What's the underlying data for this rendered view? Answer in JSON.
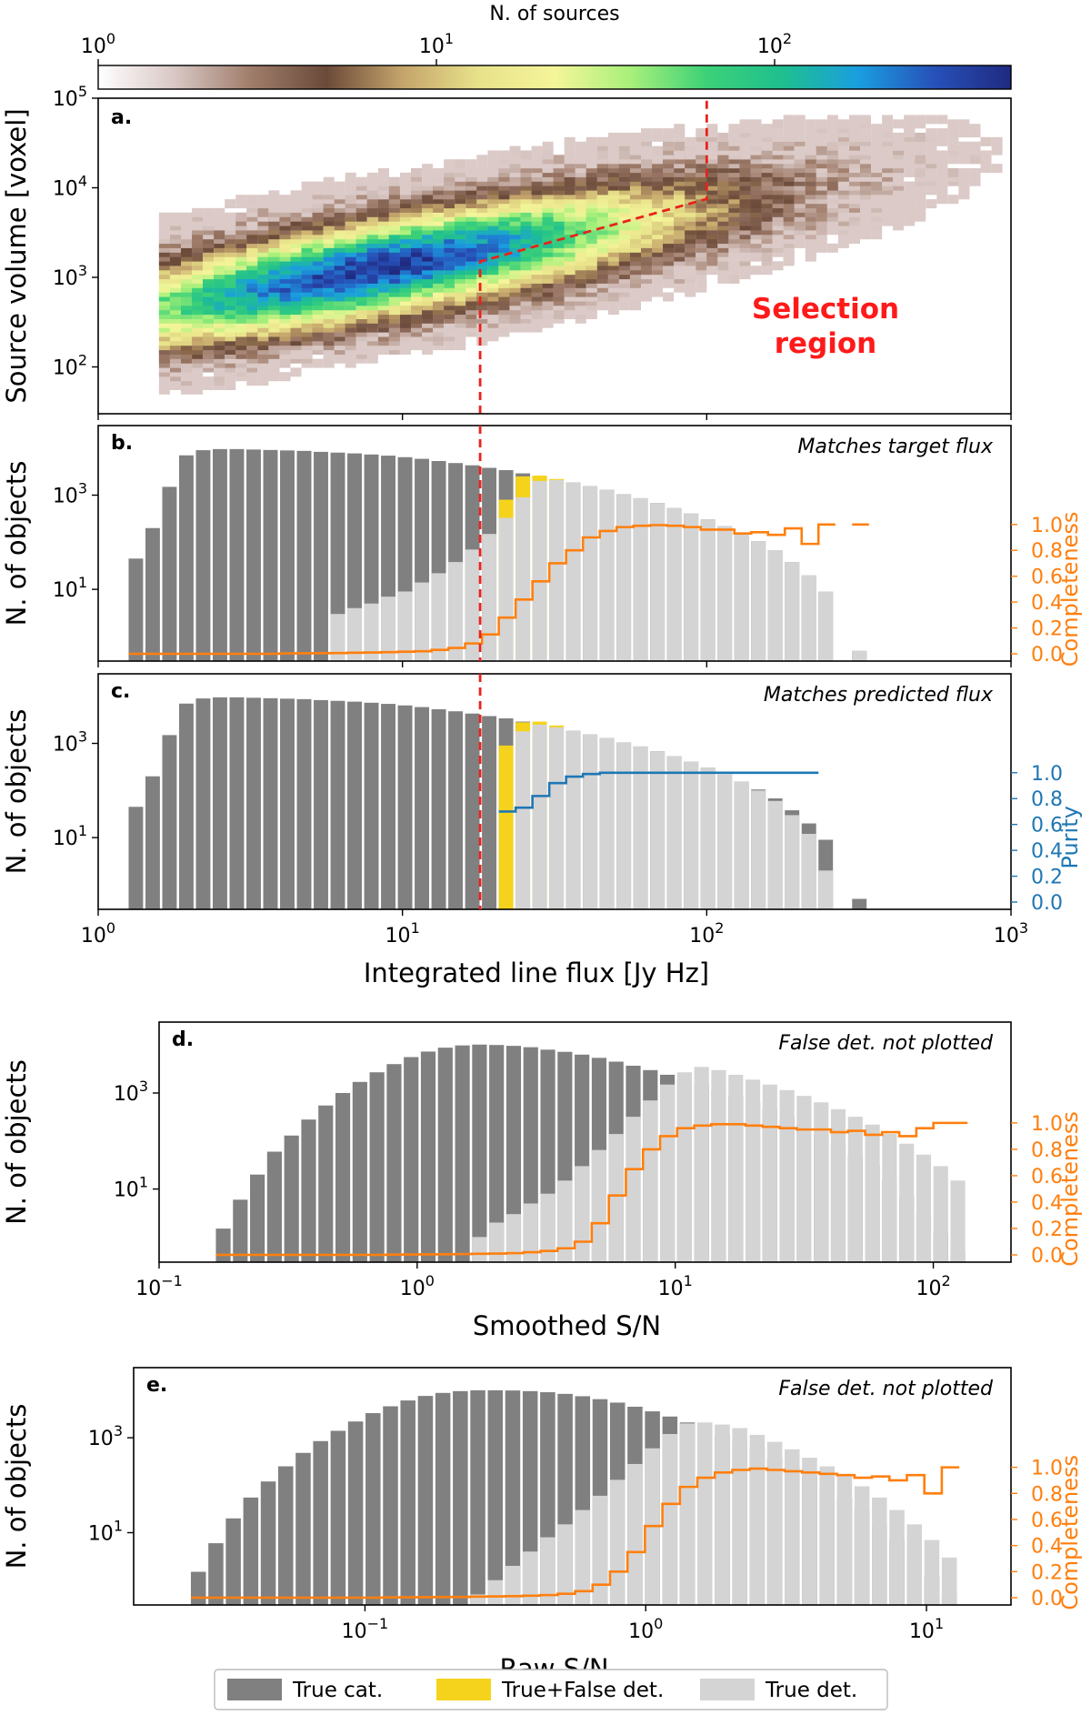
{
  "colors": {
    "true_cat": "#808080",
    "true_false_det": "#f5d31c",
    "true_det": "#d4d4d4",
    "completeness": "#ff7f0e",
    "purity": "#1f77b4",
    "selection": "#e8221c"
  },
  "legend": {
    "items": [
      {
        "label": "True cat.",
        "color": "#808080"
      },
      {
        "label": "True+False det.",
        "color": "#f5d31c"
      },
      {
        "label": "True det.",
        "color": "#d4d4d4"
      }
    ]
  },
  "chart_data": [
    {
      "id": "a",
      "type": "heatmap",
      "panel_label": "a.",
      "ylabel": "Source volume [voxel]",
      "xscale": "log",
      "yscale": "log",
      "xlim": [
        1,
        1000
      ],
      "ylim": [
        30,
        100000
      ],
      "yticks": [
        {
          "v": 100,
          "base": "10",
          "exp": "2"
        },
        {
          "v": 1000,
          "base": "10",
          "exp": "3"
        },
        {
          "v": 10000,
          "base": "10",
          "exp": "4"
        },
        {
          "v": 100000,
          "base": "10",
          "exp": "5"
        }
      ],
      "colorbar": {
        "label": "N. of sources",
        "scale": "log",
        "range": [
          1,
          500
        ],
        "ticks": [
          {
            "v": 1,
            "base": "10",
            "exp": "0"
          },
          {
            "v": 10,
            "base": "10",
            "exp": "1"
          },
          {
            "v": 100,
            "base": "10",
            "exp": "2"
          }
        ],
        "colormap": [
          "#ffffff",
          "#d9c8c5",
          "#a07d6b",
          "#6b4a3a",
          "#c4a46b",
          "#e8e28a",
          "#f5f59a",
          "#a8f07a",
          "#3cd178",
          "#1fbf8f",
          "#1a9ee0",
          "#2750b8",
          "#1f2a80"
        ]
      },
      "selection_line": {
        "vertical_at_flux": 18,
        "kink": [
          100,
          7500
        ],
        "start": [
          18,
          1500
        ]
      },
      "annotation": [
        "Selection",
        "region"
      ]
    },
    {
      "id": "b",
      "type": "bar",
      "panel_label": "b.",
      "note": "Matches target flux",
      "ylabel": "N. of objects",
      "right_label": "Completeness",
      "xscale": "log",
      "yscale": "log",
      "xlim": [
        1,
        1000
      ],
      "ylim": [
        0.3,
        30000
      ],
      "yticks": [
        {
          "v": 10,
          "base": "10",
          "exp": "1"
        },
        {
          "v": 1000,
          "base": "10",
          "exp": "3"
        }
      ],
      "right_ticks": [
        "0.0",
        "0.2",
        "0.4",
        "0.6",
        "0.8",
        "1.0"
      ],
      "bins": {
        "log_start": 0.1,
        "log_width": 0.0553,
        "count": 44
      },
      "true_cat": [
        45,
        200,
        1500,
        7000,
        9000,
        9500,
        9500,
        9300,
        9100,
        8900,
        8700,
        8300,
        8000,
        7700,
        7300,
        6900,
        6400,
        5900,
        5300,
        4800,
        4300,
        3800,
        3400,
        2900,
        2500,
        2150,
        1850,
        1550,
        1300,
        1050,
        860,
        680,
        530,
        410,
        305,
        220,
        155,
        105,
        68,
        38,
        20,
        9,
        0,
        0.5
      ],
      "true_det": [
        0,
        0,
        0,
        0,
        0,
        0,
        0,
        0,
        0,
        0,
        0,
        0,
        3,
        4,
        5,
        7,
        9,
        14,
        22,
        38,
        70,
        150,
        330,
        900,
        2000,
        2100,
        1850,
        1550,
        1300,
        1050,
        860,
        680,
        530,
        410,
        305,
        220,
        155,
        105,
        68,
        38,
        20,
        9,
        0,
        0.5
      ],
      "true_false_det": [
        0,
        0,
        0,
        0,
        0,
        0,
        0,
        0,
        0,
        0,
        0,
        0,
        0,
        0,
        0,
        0,
        0,
        0,
        0,
        0,
        0,
        0,
        800,
        2500,
        2600,
        2200,
        0,
        0,
        0,
        0,
        0,
        0,
        0,
        0,
        0,
        0,
        0,
        0,
        0,
        0,
        0,
        0,
        0,
        0
      ],
      "curve": [
        0,
        0,
        0,
        0,
        0,
        0,
        0,
        0,
        0,
        0.003,
        0.004,
        0.005,
        0.006,
        0.008,
        0.01,
        0.013,
        0.016,
        0.02,
        0.03,
        0.045,
        0.08,
        0.15,
        0.28,
        0.42,
        0.56,
        0.7,
        0.8,
        0.9,
        0.95,
        0.98,
        0.99,
        0.995,
        0.99,
        0.98,
        0.96,
        0.96,
        0.93,
        0.94,
        0.92,
        0.97,
        0.85,
        1.0,
        null,
        1.0
      ],
      "curve_start": 0.1,
      "curve_color_key": "completeness"
    },
    {
      "id": "c",
      "type": "bar",
      "panel_label": "c.",
      "note": "Matches predicted flux",
      "ylabel": "N. of objects",
      "xlabel": "Integrated line flux [Jy Hz]",
      "right_label": "Purity",
      "xscale": "log",
      "yscale": "log",
      "xlim": [
        1,
        1000
      ],
      "ylim": [
        0.3,
        30000
      ],
      "xticks": [
        {
          "v": 1,
          "base": "10",
          "exp": "0"
        },
        {
          "v": 10,
          "base": "10",
          "exp": "1"
        },
        {
          "v": 100,
          "base": "10",
          "exp": "2"
        },
        {
          "v": 1000,
          "base": "10",
          "exp": "3"
        }
      ],
      "yticks": [
        {
          "v": 10,
          "base": "10",
          "exp": "1"
        },
        {
          "v": 1000,
          "base": "10",
          "exp": "3"
        }
      ],
      "right_ticks": [
        "0.0",
        "0.2",
        "0.4",
        "0.6",
        "0.8",
        "1.0"
      ],
      "bins": {
        "log_start": 0.1,
        "log_width": 0.0553,
        "count": 44
      },
      "true_cat": [
        45,
        200,
        1500,
        7000,
        9000,
        9500,
        9500,
        9300,
        9100,
        8900,
        8700,
        8300,
        8000,
        7700,
        7300,
        6900,
        6400,
        5900,
        5300,
        4800,
        4300,
        3800,
        3400,
        2900,
        2500,
        2150,
        1850,
        1550,
        1300,
        1050,
        860,
        680,
        530,
        410,
        305,
        220,
        155,
        105,
        68,
        38,
        20,
        9,
        0,
        0.5
      ],
      "true_det": [
        0,
        0,
        0,
        0,
        0,
        0,
        0,
        0,
        0,
        0,
        0,
        0,
        0,
        0,
        0,
        0,
        0,
        0,
        0,
        0,
        0,
        0,
        0,
        1800,
        2500,
        2200,
        1850,
        1550,
        1300,
        1050,
        860,
        680,
        530,
        410,
        305,
        220,
        155,
        100,
        60,
        30,
        12,
        2,
        0,
        0
      ],
      "true_false_det": [
        0,
        0,
        0,
        0,
        0,
        0,
        0,
        0,
        0,
        0,
        0,
        0,
        0,
        0,
        0,
        0,
        0,
        0,
        0,
        0,
        0,
        0,
        900,
        2800,
        2900,
        2400,
        0,
        0,
        0,
        0,
        0,
        0,
        0,
        0,
        0,
        0,
        0,
        0,
        0,
        0,
        0,
        0,
        0,
        0
      ],
      "curve": [
        null,
        null,
        null,
        null,
        null,
        null,
        null,
        null,
        null,
        null,
        null,
        null,
        null,
        null,
        null,
        null,
        null,
        null,
        null,
        null,
        null,
        null,
        0.7,
        0.73,
        0.82,
        0.92,
        0.97,
        0.99,
        1.0,
        1.0,
        1.0,
        1.0,
        1.0,
        1.0,
        1.0,
        1.0,
        1.0,
        1.0,
        1.0,
        1.0,
        1.0,
        null,
        null,
        null
      ],
      "curve_start": 0.1,
      "curve_color_key": "purity"
    },
    {
      "id": "d",
      "type": "bar",
      "panel_label": "d.",
      "note": "False det. not plotted",
      "ylabel": "N. of objects",
      "xlabel": "Smoothed S/N",
      "right_label": "Completeness",
      "xscale": "log",
      "yscale": "log",
      "xlim": [
        0.1,
        200
      ],
      "ylim": [
        0.3,
        30000
      ],
      "xticks": [
        {
          "v": 0.1,
          "base": "10",
          "exp": "−1"
        },
        {
          "v": 1,
          "base": "10",
          "exp": "0"
        },
        {
          "v": 10,
          "base": "10",
          "exp": "1"
        },
        {
          "v": 100,
          "base": "10",
          "exp": "2"
        }
      ],
      "yticks": [
        {
          "v": 10,
          "base": "10",
          "exp": "1"
        },
        {
          "v": 1000,
          "base": "10",
          "exp": "3"
        }
      ],
      "right_ticks": [
        "0.0",
        "0.2",
        "0.4",
        "0.6",
        "0.8",
        "1.0"
      ],
      "bins": {
        "log_start": -0.78,
        "log_width": 0.0662,
        "count": 44
      },
      "true_cat": [
        1.5,
        6,
        20,
        60,
        130,
        280,
        550,
        1000,
        1700,
        2700,
        4000,
        5600,
        7300,
        8800,
        9800,
        10200,
        10000,
        9600,
        9000,
        8000,
        7200,
        6300,
        5400,
        4500,
        3700,
        3000,
        2400,
        1900,
        1500,
        1150,
        870,
        640,
        460,
        320,
        220,
        140,
        88,
        52,
        30,
        15,
        7,
        3,
        1.2,
        0.5
      ],
      "true_det": [
        0,
        0,
        0,
        0,
        0,
        0,
        0,
        0,
        0,
        0,
        0,
        0,
        0,
        0,
        0.2,
        1,
        2,
        3,
        5,
        8,
        15,
        30,
        65,
        140,
        320,
        700,
        1500,
        2700,
        3500,
        3000,
        2400,
        1900,
        1500,
        1150,
        870,
        640,
        460,
        320,
        220,
        140,
        88,
        52,
        30,
        15
      ],
      "true_false_det": [],
      "curve": [
        0,
        0,
        0,
        0,
        0,
        0,
        0,
        0,
        0,
        0,
        0.002,
        0.003,
        0.004,
        0.005,
        0.006,
        0.008,
        0.01,
        0.013,
        0.02,
        0.03,
        0.05,
        0.1,
        0.24,
        0.45,
        0.65,
        0.8,
        0.9,
        0.96,
        0.98,
        0.99,
        0.99,
        0.98,
        0.97,
        0.96,
        0.95,
        0.95,
        0.93,
        0.94,
        0.91,
        0.93,
        0.9,
        0.96,
        1.0,
        1.0
      ],
      "curve_start": -0.78,
      "curve_color_key": "completeness"
    },
    {
      "id": "e",
      "type": "bar",
      "panel_label": "e.",
      "note": "False det. not plotted",
      "ylabel": "N. of objects",
      "xlabel": "Raw S/N",
      "right_label": "Completeness",
      "xscale": "log",
      "yscale": "log",
      "xlim": [
        0.015,
        20
      ],
      "ylim": [
        0.3,
        30000
      ],
      "xticks": [
        {
          "v": 0.1,
          "base": "10",
          "exp": "−1"
        },
        {
          "v": 1,
          "base": "10",
          "exp": "0"
        },
        {
          "v": 10,
          "base": "10",
          "exp": "1"
        }
      ],
      "yticks": [
        {
          "v": 10,
          "base": "10",
          "exp": "1"
        },
        {
          "v": 1000,
          "base": "10",
          "exp": "3"
        }
      ],
      "right_ticks": [
        "0.0",
        "0.2",
        "0.4",
        "0.6",
        "0.8",
        "1.0"
      ],
      "bins": {
        "log_start": -1.62,
        "log_width": 0.0622,
        "count": 44
      },
      "true_cat": [
        1.5,
        6,
        20,
        55,
        120,
        250,
        480,
        850,
        1400,
        2200,
        3300,
        4600,
        6100,
        7600,
        8800,
        9600,
        10000,
        10000,
        9900,
        9600,
        9100,
        8400,
        7500,
        6500,
        5500,
        4500,
        3600,
        2800,
        2100,
        1600,
        1150,
        820,
        570,
        380,
        250,
        160,
        95,
        55,
        30,
        15,
        7,
        3,
        1.2,
        0.5
      ],
      "true_det": [
        0,
        0,
        0,
        0,
        0,
        0,
        0,
        0,
        0,
        0,
        0,
        0,
        0,
        0,
        0,
        0,
        0.5,
        1,
        2,
        4,
        8,
        15,
        30,
        60,
        130,
        280,
        600,
        1200,
        2000,
        2100,
        1900,
        1600,
        1150,
        820,
        570,
        380,
        250,
        160,
        95,
        55,
        30,
        15,
        7,
        3
      ],
      "true_false_det": [],
      "curve": [
        0,
        0,
        0,
        0,
        0,
        0,
        0,
        0,
        0,
        0,
        0,
        0.002,
        0.003,
        0.004,
        0.005,
        0.006,
        0.008,
        0.01,
        0.012,
        0.015,
        0.02,
        0.03,
        0.05,
        0.1,
        0.2,
        0.35,
        0.55,
        0.72,
        0.85,
        0.92,
        0.96,
        0.98,
        0.99,
        0.98,
        0.97,
        0.96,
        0.95,
        0.94,
        0.92,
        0.93,
        0.9,
        0.94,
        0.8,
        1.0
      ],
      "curve_start": -1.62,
      "curve_color_key": "completeness"
    }
  ]
}
